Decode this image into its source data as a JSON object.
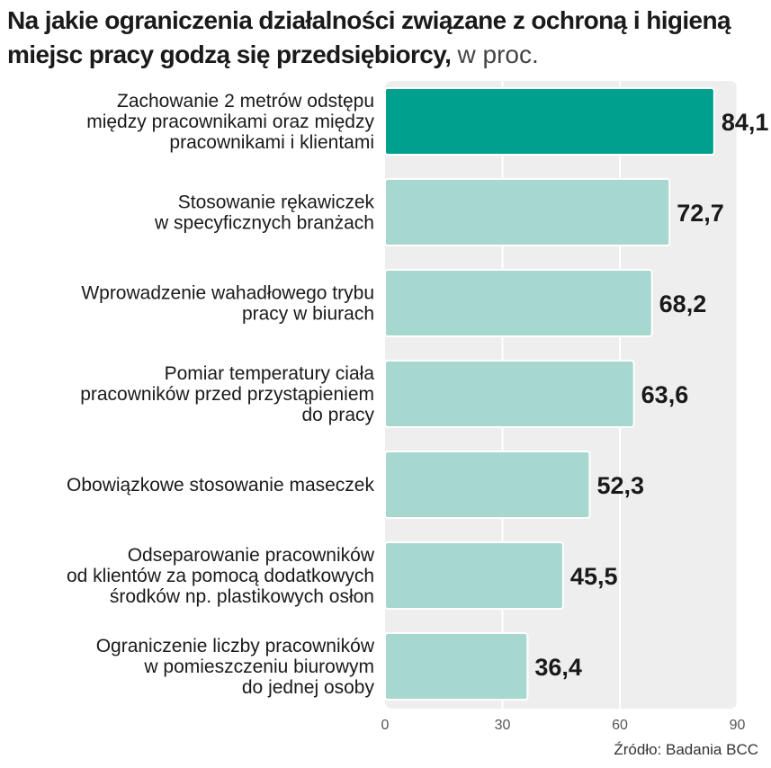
{
  "title": {
    "main": "Na jakie ograniczenia działalności związane z ochroną i higieną miejsc pracy godzą się przedsiębiorcy,",
    "unit": "w proc."
  },
  "source": "Źródło: Badania BCC",
  "colors": {
    "highlight_bar": "#00a08e",
    "bar": "#a7d8d0",
    "bar_stroke": "#ffffff",
    "panel": "#eeeeee",
    "grid": "#ffffff"
  },
  "chart_data": {
    "type": "bar",
    "orientation": "horizontal",
    "categories": [
      [
        "Zachowanie 2 metrów odstępu",
        "między pracownikami oraz między",
        "pracownikami i klientami"
      ],
      [
        "Stosowanie rękawiczek",
        "w specyficznych branżach"
      ],
      [
        "Wprowadzenie wahadłowego trybu",
        "pracy w biurach"
      ],
      [
        "Pomiar temperatury ciała",
        "pracowników przed przystąpieniem",
        "do pracy"
      ],
      [
        "Obowiązkowe stosowanie maseczek"
      ],
      [
        "Odseparowanie pracowników",
        "od klientów za pomocą dodatkowych",
        "środków np. plastikowych osłon"
      ],
      [
        "Ograniczenie liczby pracowników",
        "w pomieszczeniu biurowym",
        "do jednej osoby"
      ]
    ],
    "values": [
      84.1,
      72.7,
      68.2,
      63.6,
      52.3,
      45.5,
      36.4
    ],
    "value_labels": [
      "84,1",
      "72,7",
      "68,2",
      "63,6",
      "52,3",
      "45,5",
      "36,4"
    ],
    "highlight_index": 0,
    "xlim": [
      0,
      90
    ],
    "xticks": [
      0,
      30,
      60,
      90
    ],
    "grid": true
  }
}
